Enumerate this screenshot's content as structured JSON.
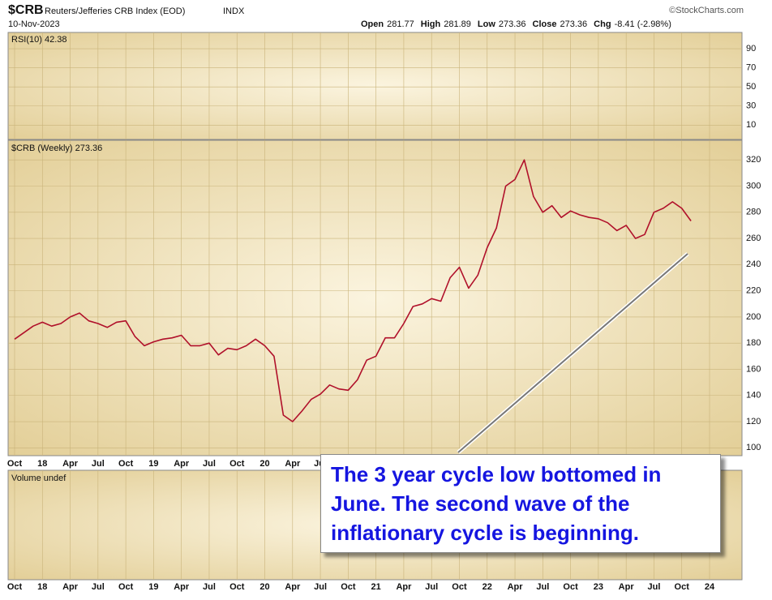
{
  "header": {
    "symbol": "$CRB",
    "name": "Reuters/Jefferies CRB Index (EOD)",
    "exchange": "INDX",
    "date": "10-Nov-2023",
    "source": "©StockCharts.com",
    "quote": [
      {
        "label": "Open",
        "value": "281.77"
      },
      {
        "label": "High",
        "value": "281.89"
      },
      {
        "label": "Low",
        "value": "273.36"
      },
      {
        "label": "Close",
        "value": "273.36"
      },
      {
        "label": "Chg",
        "value": "-8.41 (-2.98%)"
      }
    ]
  },
  "rsi": {
    "label": "RSI(10) 42.38",
    "ylim": [
      -5,
      107
    ],
    "yticks": [
      10,
      30,
      50,
      70,
      90
    ]
  },
  "volume": {
    "label": "Volume undef"
  },
  "annotation": "The 3 year cycle low bottomed in June. The second wave of the inflationary cycle is beginning.",
  "chart_data": {
    "type": "line",
    "categories": [
      "Oct",
      null,
      null,
      "18",
      null,
      null,
      "Apr",
      null,
      null,
      "Jul",
      null,
      null,
      "Oct",
      null,
      null,
      "19",
      null,
      null,
      "Apr",
      null,
      null,
      "Jul",
      null,
      null,
      "Oct",
      null,
      null,
      "20",
      null,
      null,
      "Apr",
      null,
      null,
      "Jul",
      null,
      null,
      "Oct",
      null,
      null,
      "21",
      null,
      null,
      "Apr",
      null,
      null,
      "Jul",
      null,
      null,
      "Oct",
      null,
      null,
      "22",
      null,
      null,
      "Apr",
      null,
      null,
      "Jul",
      null,
      null,
      "Oct",
      null,
      null,
      "23",
      null,
      null,
      "Apr",
      null,
      null,
      "Jul",
      null,
      null,
      "Oct",
      null,
      null,
      "24"
    ],
    "series": [
      {
        "name": "$CRB (Weekly) 273.36",
        "color": "#b0102a",
        "values": [
          183,
          188,
          193,
          196,
          193,
          195,
          200,
          203,
          197,
          195,
          192,
          196,
          197,
          185,
          178,
          181,
          183,
          184,
          186,
          178,
          178,
          180,
          171,
          176,
          175,
          178,
          183,
          178,
          170,
          125,
          120,
          128,
          137,
          141,
          148,
          145,
          144,
          152,
          167,
          170,
          184,
          184,
          195,
          208,
          210,
          214,
          212,
          230,
          238,
          222,
          232,
          253,
          268,
          300,
          305,
          320,
          292,
          280,
          285,
          276,
          281,
          278,
          276,
          275,
          272,
          266,
          270,
          260,
          263,
          280,
          283,
          288,
          283,
          273.36,
          null,
          null
        ]
      }
    ],
    "ylim": [
      94,
      335
    ],
    "yticks": [
      100,
      120,
      140,
      160,
      180,
      200,
      220,
      240,
      260,
      280,
      300,
      320
    ],
    "grid": true
  }
}
